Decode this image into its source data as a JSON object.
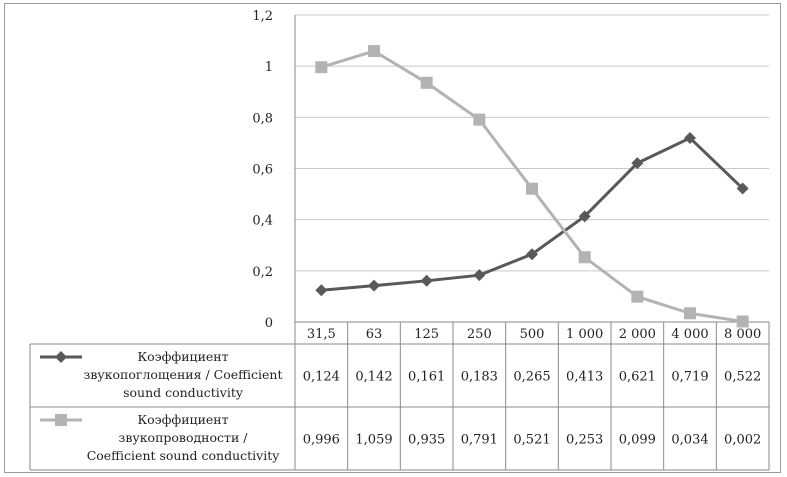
{
  "chart_data": {
    "type": "line",
    "categories": [
      "31,5",
      "63",
      "125",
      "250",
      "500",
      "1 000",
      "2 000",
      "4 000",
      "8 000"
    ],
    "series": [
      {
        "name": "Коэффициент звукопоглощения / Coefficient sound conductivity",
        "legend_lines": [
          "Коэффициент",
          "звукопоглощения / Coefficient",
          "sound conductivity"
        ],
        "values": [
          0.124,
          0.142,
          0.161,
          0.183,
          0.265,
          0.413,
          0.621,
          0.719,
          0.522
        ],
        "table_values": [
          "0,124",
          "0,142",
          "0,161",
          "0,183",
          "0,265",
          "0,413",
          "0,621",
          "0,719",
          "0,522"
        ],
        "color": "#595959",
        "marker": "diamond"
      },
      {
        "name": "Коэффициент звукопроводности / Coefficient sound conductivity",
        "legend_lines": [
          "Коэффициент",
          "звукопроводности /",
          "Coefficient sound conductivity"
        ],
        "values": [
          0.996,
          1.059,
          0.935,
          0.791,
          0.521,
          0.253,
          0.099,
          0.034,
          0.002
        ],
        "table_values": [
          "0,996",
          "1,059",
          "0,935",
          "0,791",
          "0,521",
          "0,253",
          "0,099",
          "0,034",
          "0,002"
        ],
        "color": "#b3b3b3",
        "marker": "square"
      }
    ],
    "ylim": [
      0,
      1.2
    ],
    "y_ticks": [
      0,
      0.2,
      0.4,
      0.6,
      0.8,
      1.0,
      1.2
    ],
    "y_tick_labels": [
      "0",
      "0,2",
      "0,4",
      "0,6",
      "0,8",
      "1",
      "1,2"
    ],
    "grid": true,
    "legend_placement": "data-table",
    "title": "",
    "xlabel": "",
    "ylabel": ""
  }
}
